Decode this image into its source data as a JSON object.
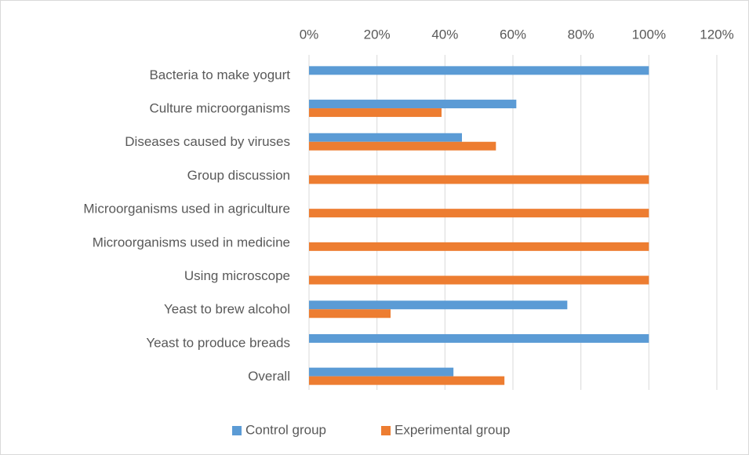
{
  "chart_data": {
    "type": "bar",
    "orientation": "horizontal",
    "categories": [
      "Bacteria to make yogurt",
      "Culture microorganisms",
      "Diseases caused by viruses",
      "Group discussion",
      "Microorganisms used in agriculture",
      "Microorganisms used in medicine",
      "Using microscope",
      "Yeast to brew alcohol",
      "Yeast to produce breads",
      "Overall"
    ],
    "series": [
      {
        "name": "Control group",
        "color": "#5b9bd5",
        "values": [
          100,
          61,
          45,
          0,
          0,
          0,
          0,
          76,
          100,
          42.5
        ]
      },
      {
        "name": "Experimental group",
        "color": "#ed7d31",
        "values": [
          0,
          39,
          55,
          100,
          100,
          100,
          100,
          24,
          0,
          57.5
        ]
      }
    ],
    "xlim": [
      0,
      120
    ],
    "xticks": [
      {
        "value": 0,
        "label": "0%"
      },
      {
        "value": 20,
        "label": "20%"
      },
      {
        "value": 40,
        "label": "40%"
      },
      {
        "value": 60,
        "label": "60%"
      },
      {
        "value": 80,
        "label": "80%"
      },
      {
        "value": 100,
        "label": "100%"
      },
      {
        "value": 120,
        "label": "120%"
      }
    ],
    "grid": true,
    "legend": "bottom"
  }
}
